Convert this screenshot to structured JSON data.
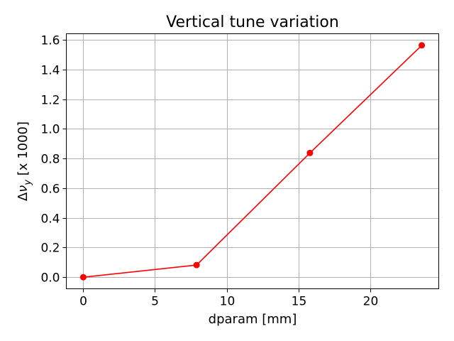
{
  "chart_data": {
    "type": "line",
    "title": "Vertical tune variation",
    "xlabel": "dparam [mm]",
    "ylabel": "Δν_y [x 1000]",
    "ylabel_parts": {
      "delta": "Δ",
      "nu": "ν",
      "sub": "y",
      "rest": " [x 1000]"
    },
    "xlim": [
      -1.18,
      24.78
    ],
    "ylim": [
      -0.078,
      1.642
    ],
    "xticks": [
      0,
      5,
      10,
      15,
      20
    ],
    "xtick_labels": [
      "0",
      "5",
      "10",
      "15",
      "20"
    ],
    "yticks": [
      0.0,
      0.2,
      0.4,
      0.6,
      0.8,
      1.0,
      1.2,
      1.4,
      1.6
    ],
    "ytick_labels": [
      "0.0",
      "0.2",
      "0.4",
      "0.6",
      "0.8",
      "1.0",
      "1.2",
      "1.4",
      "1.6"
    ],
    "grid": true,
    "series": [
      {
        "x": [
          0,
          7.9,
          15.8,
          23.6
        ],
        "y": [
          0.0,
          0.082,
          0.838,
          1.564
        ],
        "color": "#ff0000",
        "marker": "circle"
      }
    ]
  }
}
